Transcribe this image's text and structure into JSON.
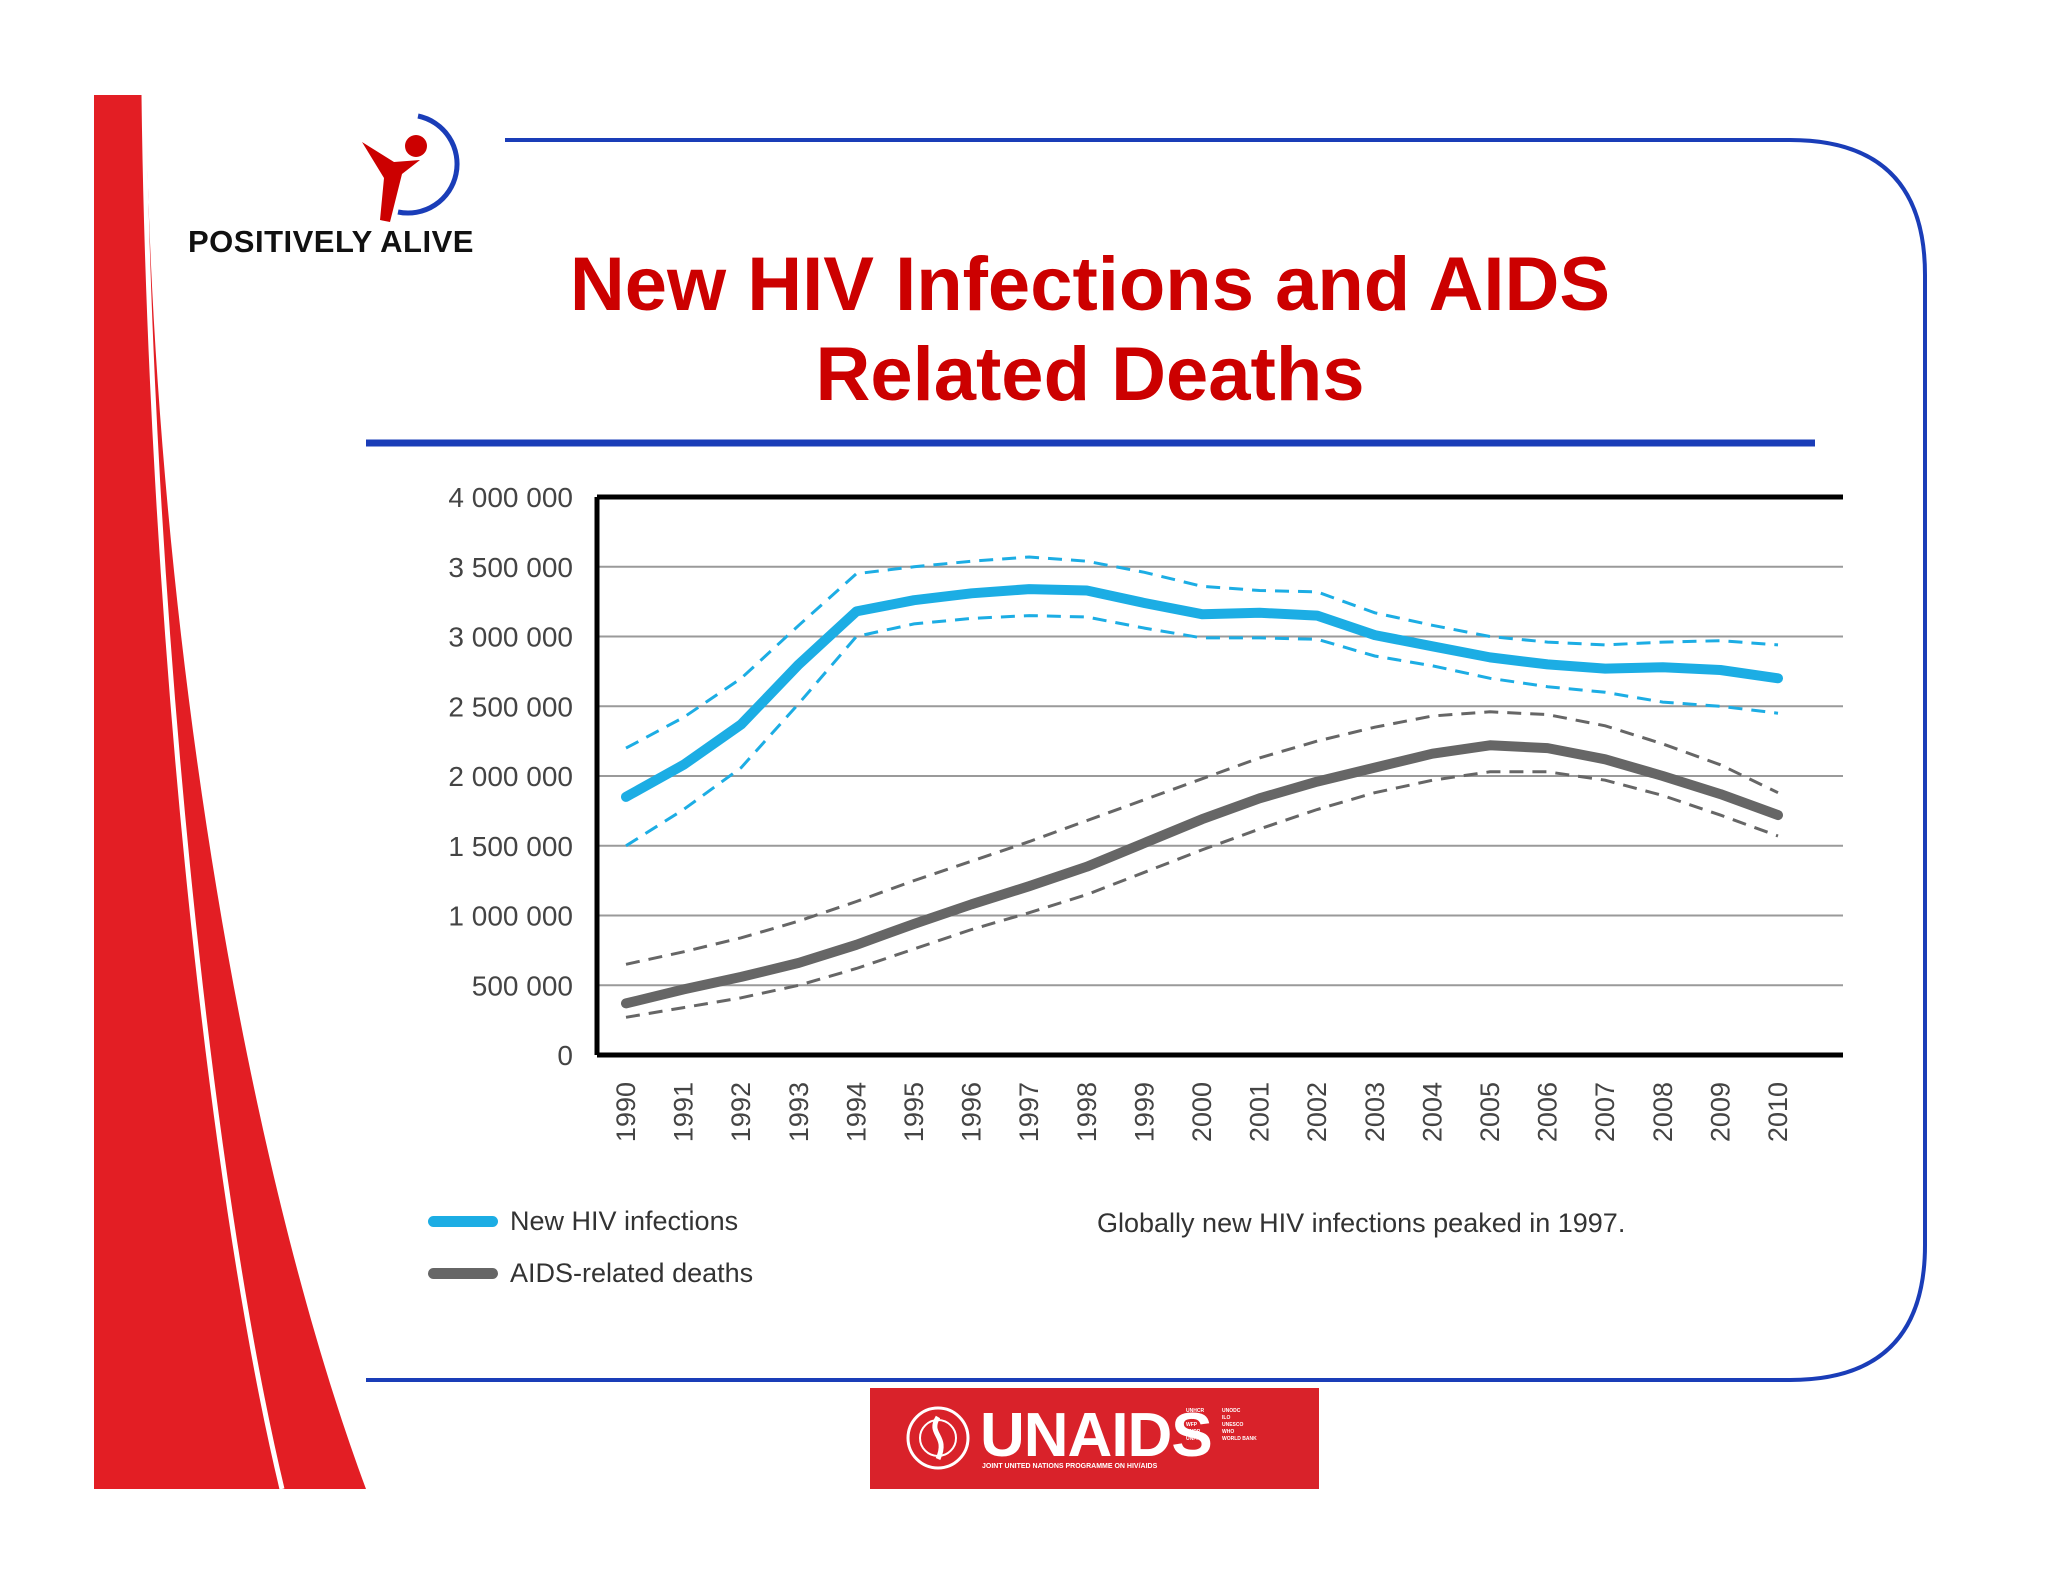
{
  "slide": {
    "title_line1": "New HIV Infections and AIDS",
    "title_line2": "Related Deaths",
    "logo_text": "POSITIVELY ALIVE",
    "brand_colors": {
      "red": "#e31e24",
      "blue": "#1a3db8",
      "title_red": "#cc0000"
    }
  },
  "footer": {
    "brand": "UNAIDS",
    "tagline": "JOINT UNITED NATIONS PROGRAMME ON HIV/AIDS",
    "cosponsors_col1": [
      "UNHCR",
      "UNICEF",
      "WFP",
      "UNDP",
      "UNFPA"
    ],
    "cosponsors_col2": [
      "UNODC",
      "ILO",
      "UNESCO",
      "WHO",
      "WORLD BANK"
    ],
    "badge_color": "#d9222a"
  },
  "chart_data": {
    "type": "line",
    "x": [
      "1990",
      "1991",
      "1992",
      "1993",
      "1994",
      "1995",
      "1996",
      "1997",
      "1998",
      "1999",
      "2000",
      "2001",
      "2002",
      "2003",
      "2004",
      "2005",
      "2006",
      "2007",
      "2008",
      "2009",
      "2010"
    ],
    "ylim": [
      0,
      4000000
    ],
    "yticks": [
      0,
      500000,
      1000000,
      1500000,
      2000000,
      2500000,
      3000000,
      3500000,
      4000000
    ],
    "ytick_labels": [
      "0",
      "500 000",
      "1 000 000",
      "1 500 000",
      "2 000 000",
      "2 500 000",
      "3 000 000",
      "3 500 000",
      "4 000 000"
    ],
    "grid": "horizontal",
    "series": [
      {
        "name": "New HIV infections",
        "color": "#1cade4",
        "values": [
          1850000,
          2080000,
          2370000,
          2800000,
          3180000,
          3260000,
          3310000,
          3340000,
          3330000,
          3240000,
          3160000,
          3170000,
          3150000,
          3010000,
          2930000,
          2850000,
          2800000,
          2770000,
          2780000,
          2760000,
          2700000
        ],
        "upper": [
          2200000,
          2420000,
          2700000,
          3080000,
          3450000,
          3500000,
          3540000,
          3570000,
          3540000,
          3460000,
          3360000,
          3330000,
          3320000,
          3170000,
          3080000,
          3000000,
          2960000,
          2940000,
          2960000,
          2970000,
          2940000
        ],
        "lower": [
          1500000,
          1760000,
          2060000,
          2520000,
          3000000,
          3090000,
          3130000,
          3150000,
          3140000,
          3060000,
          2990000,
          2990000,
          2980000,
          2860000,
          2790000,
          2700000,
          2640000,
          2600000,
          2530000,
          2500000,
          2450000
        ]
      },
      {
        "name": "AIDS-related deaths",
        "color": "#666666",
        "values": [
          370000,
          470000,
          560000,
          660000,
          790000,
          940000,
          1080000,
          1210000,
          1350000,
          1520000,
          1690000,
          1840000,
          1960000,
          2060000,
          2160000,
          2220000,
          2200000,
          2120000,
          2000000,
          1870000,
          1720000
        ],
        "upper": [
          650000,
          740000,
          840000,
          960000,
          1100000,
          1250000,
          1390000,
          1530000,
          1680000,
          1830000,
          1980000,
          2130000,
          2250000,
          2350000,
          2430000,
          2460000,
          2440000,
          2360000,
          2230000,
          2080000,
          1880000
        ],
        "lower": [
          270000,
          340000,
          410000,
          500000,
          620000,
          760000,
          900000,
          1020000,
          1150000,
          1310000,
          1470000,
          1620000,
          1760000,
          1880000,
          1970000,
          2030000,
          2030000,
          1970000,
          1860000,
          1720000,
          1570000
        ]
      }
    ],
    "annotation": "Globally new HIV infections peaked in 1997."
  }
}
